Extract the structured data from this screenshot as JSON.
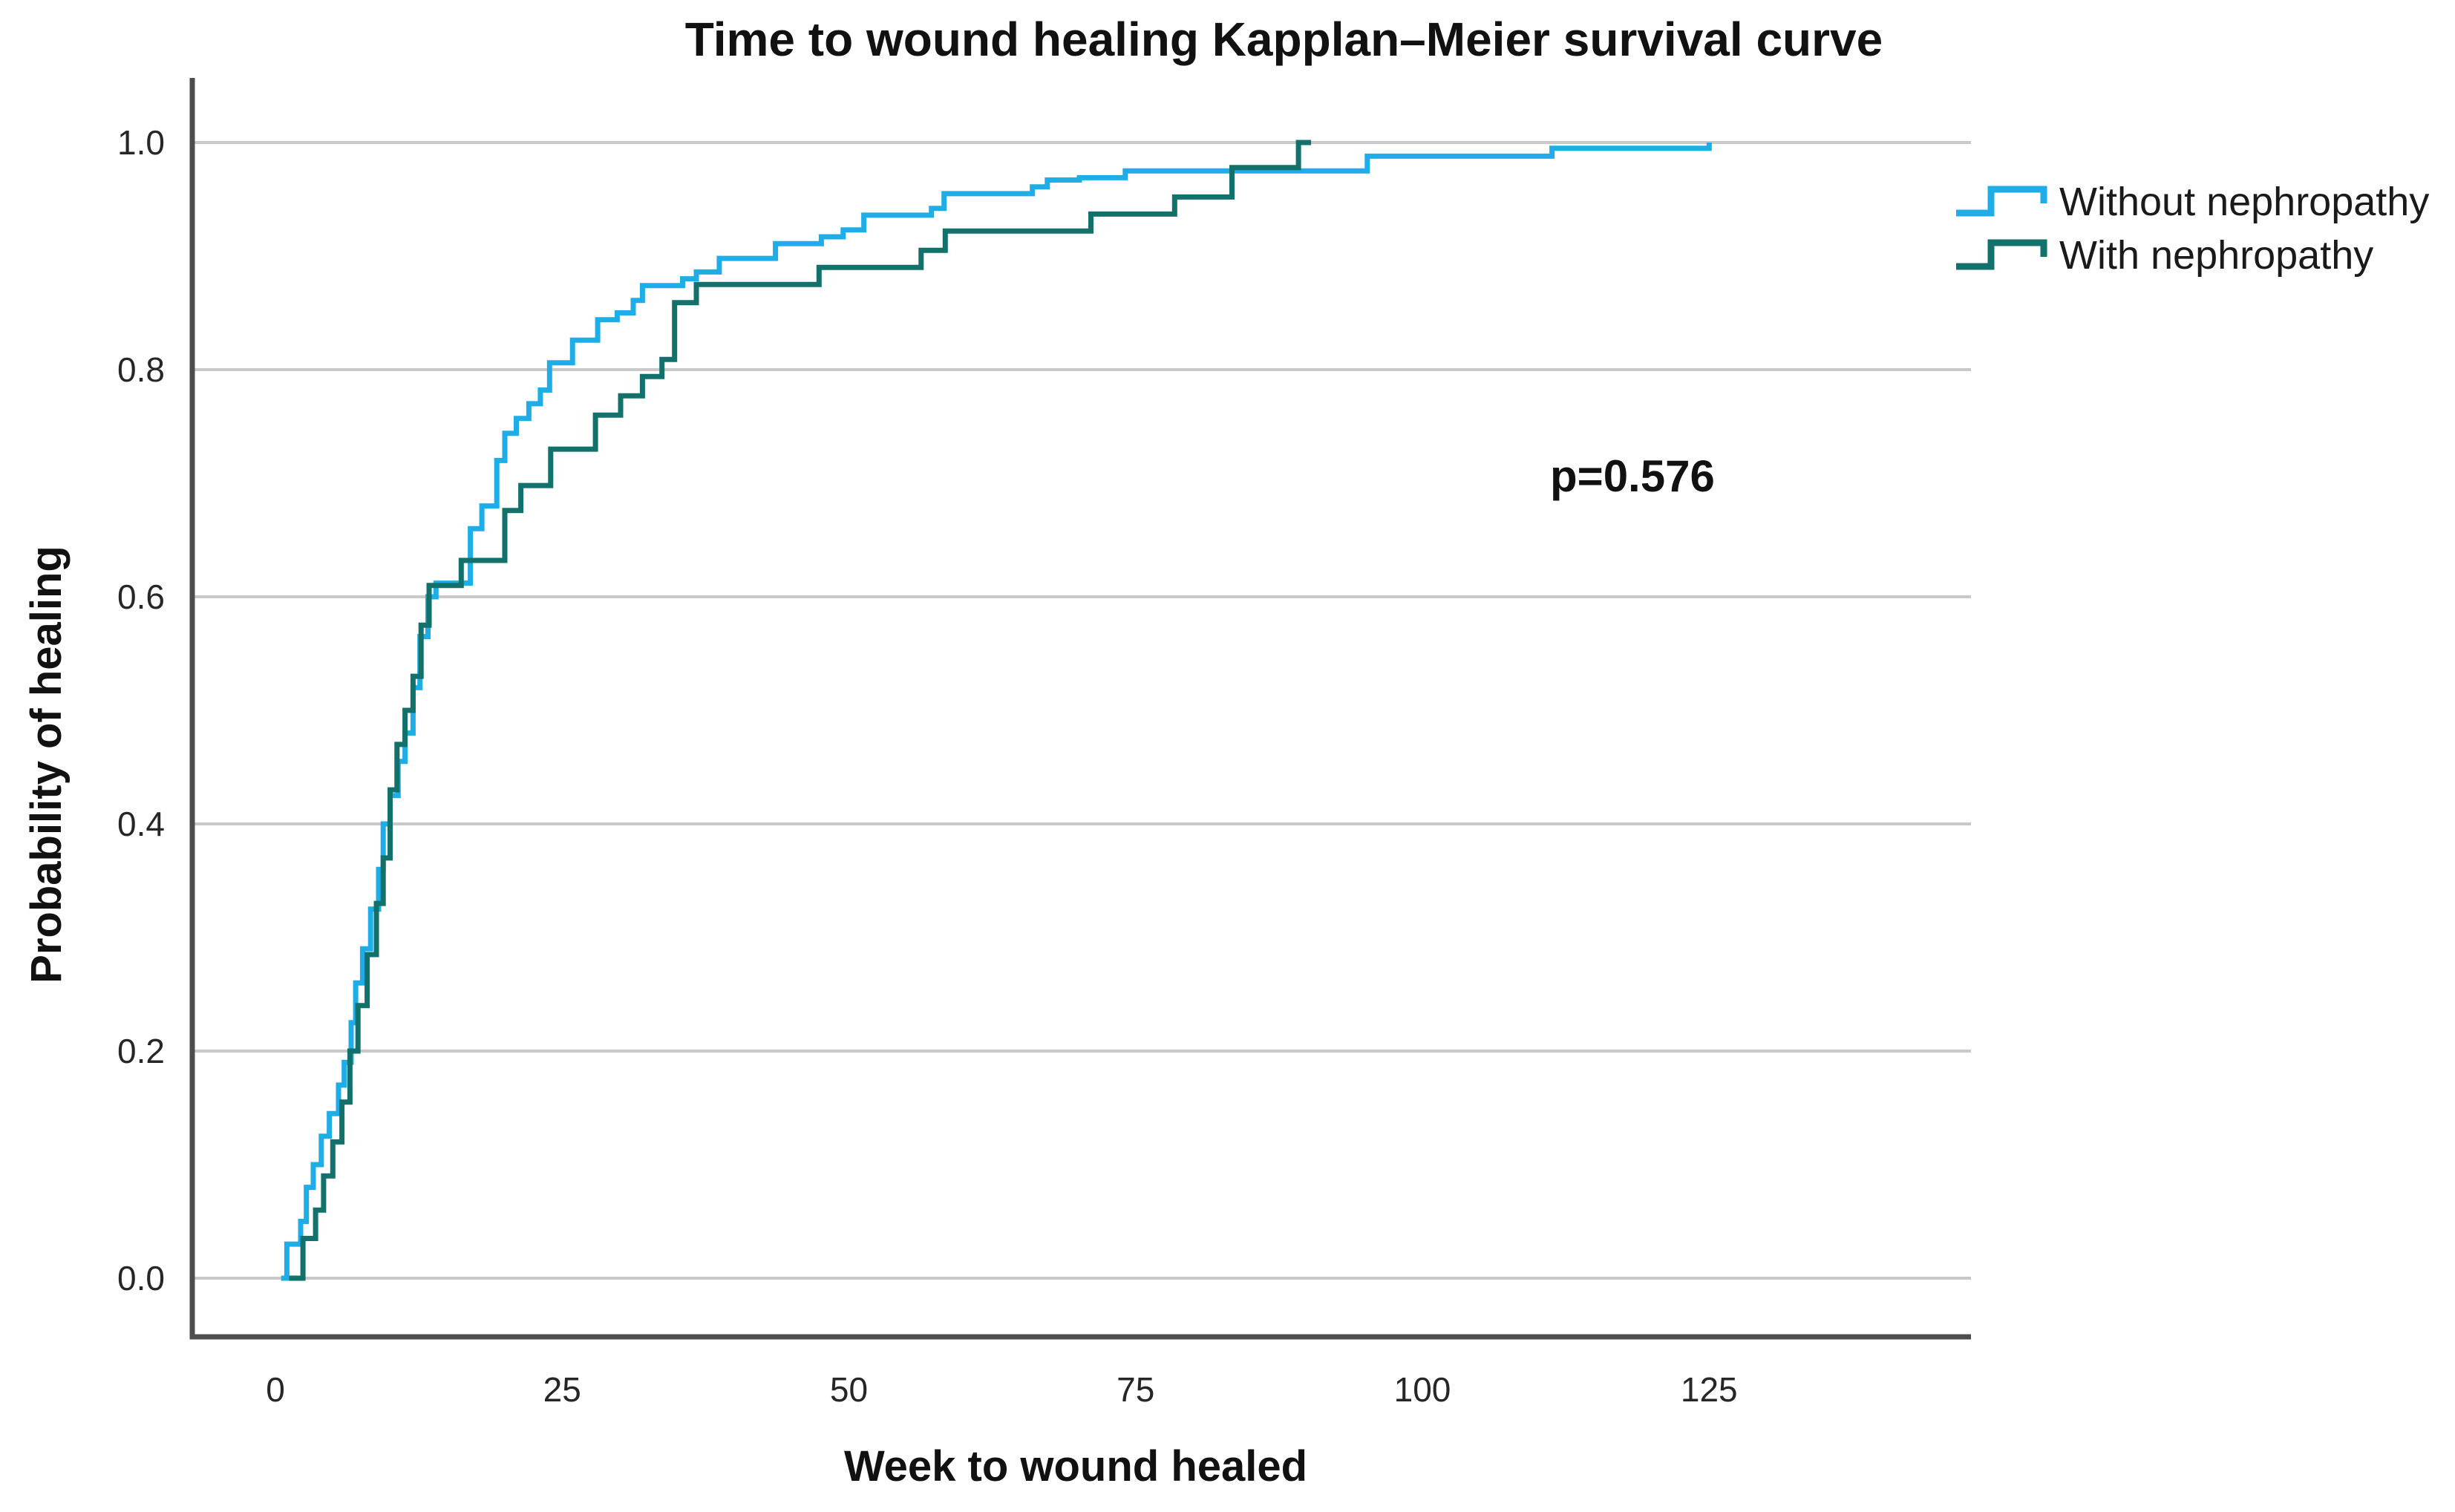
{
  "title": {
    "text": "Time to wound healing Kapplan–Meier survival curve"
  },
  "axes": {
    "x": {
      "label": "Week to wound healed"
    },
    "y": {
      "label": "Probability of healing"
    }
  },
  "annotation": {
    "p_value": "p=0.576"
  },
  "legend": {
    "items": [
      {
        "label": "Without nephropathy",
        "color": "#1FADE8"
      },
      {
        "label": "With nephropathy",
        "color": "#12716A"
      }
    ]
  },
  "chart_data": {
    "type": "line",
    "step": true,
    "title": "Time to wound healing Kapplan–Meier survival curve",
    "xlabel": "Week to wound healed",
    "ylabel": "Probability of healing",
    "x_ticks": [
      0,
      25,
      50,
      75,
      100,
      125
    ],
    "y_ticks": [
      "1.0",
      "0.8",
      "0.6",
      "0.4",
      "0.2",
      "0.0"
    ],
    "xlim_weeks": [
      -7,
      148
    ],
    "ylim": [
      -0.07,
      1.06
    ],
    "grid": "horizontal-only",
    "legend_position": "right-top",
    "annotation_text": "p=0.576",
    "series": [
      {
        "name": "Without nephropathy",
        "color": "#1FADE8",
        "points": [
          [
            0.5,
            0.0
          ],
          [
            1.0,
            0.03
          ],
          [
            2.2,
            0.05
          ],
          [
            2.7,
            0.08
          ],
          [
            3.3,
            0.1
          ],
          [
            4.0,
            0.125
          ],
          [
            4.7,
            0.145
          ],
          [
            5.5,
            0.17
          ],
          [
            6.0,
            0.19
          ],
          [
            6.6,
            0.225
          ],
          [
            7.0,
            0.26
          ],
          [
            7.6,
            0.29
          ],
          [
            8.3,
            0.325
          ],
          [
            9.0,
            0.36
          ],
          [
            9.4,
            0.4
          ],
          [
            10.0,
            0.425
          ],
          [
            10.7,
            0.455
          ],
          [
            11.3,
            0.48
          ],
          [
            12.0,
            0.52
          ],
          [
            12.6,
            0.565
          ],
          [
            13.3,
            0.6
          ],
          [
            14.0,
            0.612
          ],
          [
            17.0,
            0.66
          ],
          [
            18.0,
            0.68
          ],
          [
            19.3,
            0.72
          ],
          [
            20.0,
            0.744
          ],
          [
            21.0,
            0.757
          ],
          [
            22.1,
            0.77
          ],
          [
            23.1,
            0.782
          ],
          [
            23.9,
            0.806
          ],
          [
            25.9,
            0.826
          ],
          [
            28.1,
            0.844
          ],
          [
            29.8,
            0.85
          ],
          [
            31.2,
            0.861
          ],
          [
            32.0,
            0.874
          ],
          [
            35.5,
            0.88
          ],
          [
            36.7,
            0.886
          ],
          [
            38.7,
            0.898
          ],
          [
            43.6,
            0.911
          ],
          [
            47.6,
            0.917
          ],
          [
            49.5,
            0.923
          ],
          [
            51.3,
            0.936
          ],
          [
            57.2,
            0.942
          ],
          [
            58.3,
            0.955
          ],
          [
            66.0,
            0.961
          ],
          [
            67.3,
            0.967
          ],
          [
            70.1,
            0.969
          ],
          [
            74.1,
            0.975
          ],
          [
            95.2,
            0.988
          ],
          [
            111.3,
            0.995
          ],
          [
            125.0,
            1.0
          ]
        ]
      },
      {
        "name": "With nephropathy",
        "color": "#12716A",
        "points": [
          [
            1.2,
            0.0
          ],
          [
            2.4,
            0.035
          ],
          [
            3.5,
            0.06
          ],
          [
            4.2,
            0.09
          ],
          [
            5.0,
            0.12
          ],
          [
            5.8,
            0.155
          ],
          [
            6.5,
            0.2
          ],
          [
            7.2,
            0.24
          ],
          [
            8.0,
            0.285
          ],
          [
            8.8,
            0.33
          ],
          [
            9.4,
            0.37
          ],
          [
            10.0,
            0.43
          ],
          [
            10.6,
            0.47
          ],
          [
            11.3,
            0.5
          ],
          [
            12.0,
            0.53
          ],
          [
            12.7,
            0.575
          ],
          [
            13.4,
            0.61
          ],
          [
            16.2,
            0.632
          ],
          [
            20.0,
            0.676
          ],
          [
            21.4,
            0.698
          ],
          [
            24.0,
            0.73
          ],
          [
            27.9,
            0.76
          ],
          [
            30.1,
            0.777
          ],
          [
            32.0,
            0.794
          ],
          [
            33.7,
            0.809
          ],
          [
            34.8,
            0.859
          ],
          [
            36.7,
            0.875
          ],
          [
            47.4,
            0.89
          ],
          [
            56.3,
            0.905
          ],
          [
            58.4,
            0.922
          ],
          [
            71.1,
            0.937
          ],
          [
            78.4,
            0.952
          ],
          [
            83.4,
            0.978
          ],
          [
            89.2,
            1.0
          ],
          [
            90.3,
            1.0
          ]
        ]
      }
    ]
  }
}
